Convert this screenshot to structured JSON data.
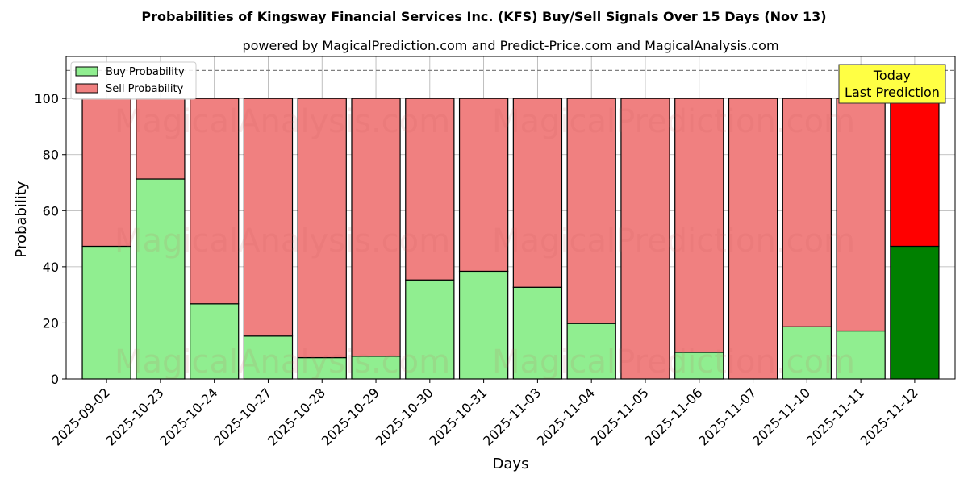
{
  "chart_data": {
    "type": "bar",
    "stacked": true,
    "title": "Probabilities of Kingsway Financial Services Inc. (KFS) Buy/Sell Signals Over 15 Days (Nov 13)",
    "subtitle": "powered by MagicalPrediction.com and Predict-Price.com and MagicalAnalysis.com",
    "xlabel": "Days",
    "ylabel": "Probability",
    "ylim": [
      0,
      115
    ],
    "yticks": [
      0,
      20,
      40,
      60,
      80,
      100
    ],
    "reference_line": 110,
    "grid": true,
    "legend_position": "top-left",
    "categories": [
      "2025-09-02",
      "2025-10-23",
      "2025-10-24",
      "2025-10-27",
      "2025-10-28",
      "2025-10-29",
      "2025-10-30",
      "2025-10-31",
      "2025-11-03",
      "2025-11-04",
      "2025-11-05",
      "2025-11-06",
      "2025-11-07",
      "2025-11-10",
      "2025-11-11",
      "2025-11-12"
    ],
    "series": [
      {
        "name": "Buy Probability",
        "color": "#90ee90",
        "highlight_color": "#008000",
        "values": [
          47.3,
          71.3,
          26.8,
          15.3,
          7.6,
          8.1,
          35.3,
          38.4,
          32.7,
          19.8,
          0,
          9.5,
          0,
          18.6,
          17.1,
          47.3
        ]
      },
      {
        "name": "Sell Probability",
        "color": "#f08080",
        "highlight_color": "#ff0000",
        "values": [
          52.7,
          28.7,
          73.2,
          84.7,
          92.4,
          91.9,
          64.7,
          61.6,
          67.3,
          80.2,
          100,
          90.5,
          100,
          81.4,
          82.9,
          52.7
        ]
      }
    ],
    "annotation": {
      "lines": [
        "Today",
        "Last Prediction"
      ],
      "color": "#ffff44"
    },
    "watermarks": [
      "MagicalAnalysis.com",
      "MagicalPrediction.com"
    ]
  }
}
